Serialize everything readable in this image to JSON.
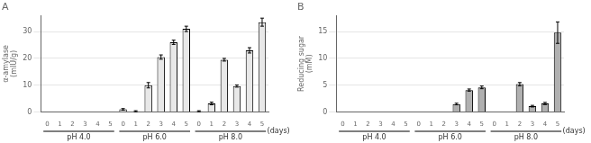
{
  "chart_data": [
    {
      "type": "bar",
      "title": "A",
      "ylabel": "α-amylase\n(mIU/g)",
      "xlabel": "(days)",
      "categories": [
        "0",
        "1",
        "2",
        "3",
        "4",
        "5"
      ],
      "groups": [
        {
          "name": "pH 4.0",
          "values": [
            0,
            0,
            0,
            0,
            0,
            0
          ],
          "errors": [
            0,
            0,
            0,
            0,
            0,
            0
          ]
        },
        {
          "name": "pH 6.0",
          "values": [
            1.0,
            0.3,
            10.0,
            20.5,
            26.0,
            31.0
          ],
          "errors": [
            0.3,
            0.2,
            1.0,
            0.8,
            0.8,
            1.0
          ]
        },
        {
          "name": "pH 8.0",
          "values": [
            0.3,
            3.2,
            19.5,
            9.7,
            23.0,
            33.5
          ],
          "errors": [
            0.2,
            0.5,
            0.5,
            0.4,
            1.0,
            1.5
          ]
        }
      ],
      "color": "#e8e8e8",
      "ylim": [
        0,
        36
      ],
      "yticks": [
        0,
        10,
        20,
        30
      ],
      "grid": true
    },
    {
      "type": "bar",
      "title": "B",
      "ylabel": "Reducing sugar\n(mM)",
      "xlabel": "(days)",
      "categories": [
        "0",
        "1",
        "2",
        "3",
        "4",
        "5"
      ],
      "groups": [
        {
          "name": "pH 4.0",
          "values": [
            0,
            0,
            0,
            0,
            0,
            0
          ],
          "errors": [
            0,
            0,
            0,
            0,
            0,
            0
          ]
        },
        {
          "name": "pH 6.0",
          "values": [
            0,
            0,
            0,
            1.5,
            4.1,
            4.6
          ],
          "errors": [
            0,
            0,
            0,
            0.15,
            0.2,
            0.25
          ]
        },
        {
          "name": "pH 8.0",
          "values": [
            0,
            0,
            5.2,
            1.1,
            1.6,
            14.8
          ],
          "errors": [
            0,
            0,
            0.3,
            0.15,
            0.2,
            2.0
          ]
        }
      ],
      "color": "#b0b0b0",
      "ylim": [
        0,
        18
      ],
      "yticks": [
        0,
        5,
        10,
        15
      ],
      "grid": true
    }
  ]
}
